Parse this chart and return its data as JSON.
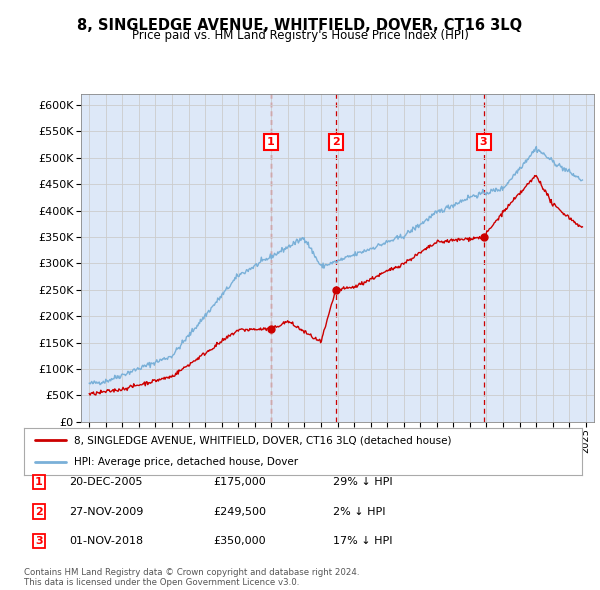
{
  "title": "8, SINGLEDGE AVENUE, WHITFIELD, DOVER, CT16 3LQ",
  "subtitle": "Price paid vs. HM Land Registry's House Price Index (HPI)",
  "ylim": [
    0,
    620000
  ],
  "yticks": [
    0,
    50000,
    100000,
    150000,
    200000,
    250000,
    300000,
    350000,
    400000,
    450000,
    500000,
    550000,
    600000
  ],
  "xlim_start": 1994.5,
  "xlim_end": 2025.5,
  "grid_color": "#cccccc",
  "bg_color": "#dde8f8",
  "sale_color": "#cc0000",
  "hpi_color": "#7ab0d8",
  "vline_color": "#cc0000",
  "purchases": [
    {
      "date_x": 2005.97,
      "price": 175000,
      "label": "1"
    },
    {
      "date_x": 2009.91,
      "price": 249500,
      "label": "2"
    },
    {
      "date_x": 2018.83,
      "price": 350000,
      "label": "3"
    }
  ],
  "legend_sale": "8, SINGLEDGE AVENUE, WHITFIELD, DOVER, CT16 3LQ (detached house)",
  "legend_hpi": "HPI: Average price, detached house, Dover",
  "footnote": "Contains HM Land Registry data © Crown copyright and database right 2024.\nThis data is licensed under the Open Government Licence v3.0.",
  "table_rows": [
    {
      "num": "1",
      "date": "20-DEC-2005",
      "price": "£175,000",
      "pct": "29% ↓ HPI"
    },
    {
      "num": "2",
      "date": "27-NOV-2009",
      "price": "£249,500",
      "pct": "2% ↓ HPI"
    },
    {
      "num": "3",
      "date": "01-NOV-2018",
      "price": "£350,000",
      "pct": "17% ↓ HPI"
    }
  ]
}
